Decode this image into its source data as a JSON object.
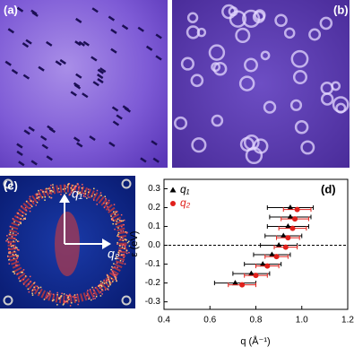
{
  "panels": {
    "a": "(a)",
    "b": "(b)",
    "c": "(c)",
    "c_axes": [
      "q₁",
      "q₂"
    ]
  },
  "chart_data": {
    "type": "scatter",
    "label": "(d)",
    "x_label": "q (Å⁻¹)",
    "y_label": "ε (eV)",
    "xlim": [
      0.4,
      1.2
    ],
    "xticks": [
      0.4,
      0.6,
      0.8,
      {
        "value": 1,
        "label": "1.0"
      },
      1.2
    ],
    "ylim": [
      -0.34,
      0.35
    ],
    "yticks": [
      -0.3,
      -0.2,
      -0.1,
      {
        "value": 0,
        "label": "0.0"
      },
      0.1,
      0.2,
      0.3
    ],
    "reference_line": 0,
    "legend": "upper left",
    "series": [
      {
        "name": "q₁",
        "color": "#000000",
        "marker": "triangle",
        "x": [
          0.95,
          0.95,
          0.94,
          0.92,
          0.9,
          0.87,
          0.83,
          0.78,
          0.71
        ],
        "values": [
          0.2,
          0.15,
          0.1,
          0.05,
          0.0,
          -0.05,
          -0.1,
          -0.15,
          -0.2
        ],
        "errors": [
          0.1,
          0.09,
          0.09,
          0.08,
          0.08,
          0.08,
          0.08,
          0.08,
          0.09
        ]
      },
      {
        "name": "q₂",
        "color": "#e0201b",
        "marker": "circle",
        "x": [
          0.98,
          0.97,
          0.96,
          0.94,
          0.93,
          0.89,
          0.85,
          0.8,
          0.74
        ],
        "values": [
          0.19,
          0.14,
          0.09,
          0.04,
          -0.01,
          -0.06,
          -0.11,
          -0.16,
          -0.21
        ],
        "errors": [
          0.06,
          0.06,
          0.06,
          0.05,
          0.05,
          0.05,
          0.05,
          0.05,
          0.06
        ]
      }
    ]
  }
}
